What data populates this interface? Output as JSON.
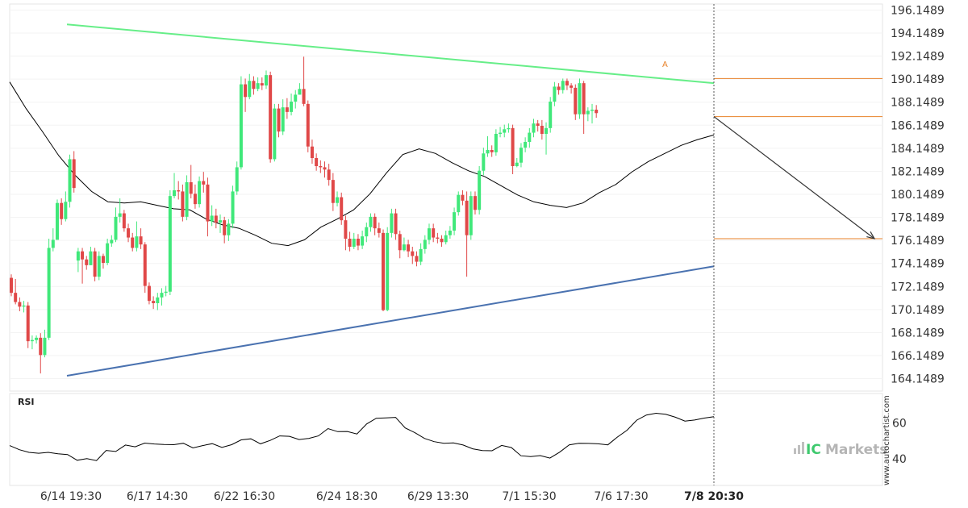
{
  "chart_data": [
    {
      "type": "candlestick",
      "y_ticks": [
        "196.1489",
        "194.1489",
        "192.1489",
        "190.1489",
        "188.1489",
        "186.1489",
        "184.1489",
        "182.1489",
        "180.1489",
        "178.1489",
        "176.1489",
        "174.1489",
        "172.1489",
        "170.1489",
        "168.1489",
        "166.1489",
        "164.1489"
      ],
      "ylim": [
        163.0,
        196.6
      ],
      "x_ticks": [
        "6/14 19:30",
        "6/17 14:30",
        "6/22 16:30",
        "6/24 18:30",
        "6/29 13:30",
        "7/1 15:30",
        "7/6 17:30",
        "7/8 20:30"
      ],
      "x_ticks_emphasis": "7/8 20:30",
      "candles": [
        [
          172.9,
          171.6,
          173.2,
          171.3
        ],
        [
          171.6,
          170.8,
          172.8,
          170.6
        ],
        [
          170.8,
          170.4,
          171.2,
          170.0
        ],
        [
          170.4,
          170.5,
          170.9,
          169.9
        ],
        [
          170.5,
          167.4,
          170.8,
          166.8
        ],
        [
          167.4,
          167.5,
          167.9,
          166.7
        ],
        [
          167.5,
          167.7,
          167.9,
          167.2
        ],
        [
          167.7,
          166.2,
          168.1,
          164.6
        ],
        [
          166.2,
          167.7,
          168.4,
          166.0
        ],
        [
          167.7,
          175.5,
          176.3,
          167.5
        ],
        [
          175.5,
          176.2,
          177.2,
          175.2
        ],
        [
          176.2,
          179.4,
          179.7,
          176.4
        ],
        [
          179.4,
          178.0,
          179.8,
          177.5
        ],
        [
          178.0,
          179.5,
          180.4,
          177.8
        ],
        [
          179.5,
          183.2,
          183.6,
          179.0
        ],
        [
          183.2,
          180.7,
          183.9,
          180.3
        ],
        [
          174.4,
          175.2,
          175.5,
          173.4
        ],
        [
          175.2,
          174.5,
          175.5,
          172.4
        ],
        [
          174.5,
          174.0,
          174.8,
          173.6
        ],
        [
          174.0,
          175.2,
          175.6,
          174.0
        ],
        [
          175.2,
          173.0,
          175.5,
          172.6
        ],
        [
          173.0,
          174.8,
          175.2,
          172.7
        ],
        [
          174.8,
          174.2,
          175.0,
          173.7
        ],
        [
          174.2,
          175.9,
          176.3,
          174.0
        ],
        [
          175.9,
          176.2,
          176.6,
          175.6
        ],
        [
          176.2,
          178.2,
          179.0,
          176.0
        ],
        [
          178.2,
          178.5,
          179.8,
          177.7
        ],
        [
          178.5,
          177.2,
          178.8,
          176.9
        ],
        [
          177.2,
          176.4,
          177.6,
          176.0
        ],
        [
          176.4,
          175.5,
          176.8,
          175.2
        ],
        [
          175.5,
          176.5,
          177.8,
          175.2
        ],
        [
          176.5,
          175.8,
          177.2,
          175.4
        ],
        [
          175.8,
          172.2,
          176.0,
          171.6
        ],
        [
          172.2,
          170.9,
          172.5,
          170.6
        ],
        [
          170.9,
          170.7,
          171.3,
          170.2
        ],
        [
          170.7,
          171.2,
          171.6,
          170.1
        ],
        [
          171.2,
          171.6,
          172.0,
          170.5
        ],
        [
          171.6,
          171.7,
          172.2,
          171.3
        ],
        [
          171.7,
          180.0,
          180.5,
          171.4
        ],
        [
          180.0,
          180.5,
          182.0,
          179.8
        ],
        [
          180.5,
          180.4,
          181.3,
          179.7
        ],
        [
          180.4,
          178.2,
          181.0,
          177.8
        ],
        [
          178.2,
          181.2,
          181.8,
          177.9
        ],
        [
          181.2,
          180.2,
          182.7,
          179.8
        ],
        [
          180.2,
          179.3,
          181.0,
          178.9
        ],
        [
          179.3,
          181.3,
          181.7,
          179.0
        ],
        [
          181.3,
          181.0,
          182.1,
          180.3
        ],
        [
          181.0,
          177.8,
          181.6,
          176.5
        ],
        [
          177.8,
          178.3,
          179.2,
          177.4
        ],
        [
          178.3,
          177.7,
          178.9,
          177.2
        ],
        [
          177.7,
          177.9,
          178.4,
          176.8
        ],
        [
          177.9,
          176.6,
          178.2,
          175.9
        ],
        [
          176.6,
          177.6,
          178.0,
          176.1
        ],
        [
          177.6,
          180.4,
          180.9,
          177.2
        ],
        [
          180.4,
          182.5,
          183.0,
          180.1
        ],
        [
          182.5,
          189.7,
          190.4,
          182.3
        ],
        [
          189.7,
          188.6,
          190.2,
          187.3
        ],
        [
          188.6,
          190.0,
          190.6,
          188.4
        ],
        [
          190.0,
          189.3,
          190.4,
          188.8
        ],
        [
          189.3,
          189.8,
          190.3,
          189.1
        ],
        [
          189.8,
          189.6,
          190.3,
          189.2
        ],
        [
          189.6,
          190.5,
          190.9,
          189.3
        ],
        [
          190.5,
          183.2,
          190.8,
          182.9
        ],
        [
          183.2,
          187.6,
          188.0,
          183.0
        ],
        [
          187.6,
          185.6,
          188.0,
          185.1
        ],
        [
          185.6,
          187.7,
          188.4,
          185.3
        ],
        [
          187.7,
          187.3,
          188.5,
          186.7
        ],
        [
          187.3,
          188.2,
          188.9,
          187.0
        ],
        [
          188.2,
          188.8,
          189.2,
          187.6
        ],
        [
          188.8,
          189.3,
          189.8,
          188.8
        ],
        [
          189.3,
          188.0,
          192.1,
          187.8
        ],
        [
          188.0,
          184.3,
          188.3,
          183.8
        ],
        [
          184.3,
          183.3,
          184.9,
          182.8
        ],
        [
          183.3,
          182.6,
          183.7,
          182.2
        ],
        [
          182.6,
          182.5,
          183.1,
          182.0
        ],
        [
          182.5,
          182.3,
          183.0,
          181.6
        ],
        [
          182.3,
          181.4,
          182.8,
          180.9
        ],
        [
          181.4,
          179.4,
          182.0,
          178.7
        ],
        [
          179.4,
          179.9,
          180.4,
          179.1
        ],
        [
          179.9,
          177.9,
          180.3,
          177.5
        ],
        [
          177.9,
          176.3,
          178.3,
          175.3
        ],
        [
          176.3,
          175.6,
          176.9,
          175.2
        ],
        [
          175.6,
          176.3,
          176.8,
          175.4
        ],
        [
          176.3,
          175.7,
          176.7,
          175.3
        ],
        [
          175.7,
          176.5,
          177.0,
          175.4
        ],
        [
          176.5,
          177.3,
          177.7,
          176.0
        ],
        [
          177.3,
          178.2,
          178.5,
          176.9
        ],
        [
          178.2,
          177.2,
          178.5,
          176.6
        ],
        [
          177.2,
          176.8,
          177.7,
          176.4
        ],
        [
          176.8,
          170.1,
          177.1,
          170.0
        ],
        [
          170.1,
          176.8,
          177.3,
          170.0
        ],
        [
          176.8,
          178.5,
          178.9,
          176.4
        ],
        [
          178.5,
          176.7,
          178.9,
          176.2
        ],
        [
          176.7,
          175.3,
          177.0,
          174.6
        ],
        [
          175.3,
          175.8,
          176.4,
          175.2
        ],
        [
          175.8,
          175.2,
          176.2,
          174.7
        ],
        [
          175.2,
          174.8,
          175.6,
          174.1
        ],
        [
          174.8,
          174.3,
          175.2,
          173.9
        ],
        [
          174.3,
          175.4,
          175.9,
          174.0
        ],
        [
          175.4,
          176.2,
          176.6,
          175.0
        ],
        [
          176.2,
          177.2,
          177.6,
          175.8
        ],
        [
          177.2,
          176.4,
          177.6,
          176.0
        ],
        [
          176.4,
          176.3,
          176.8,
          175.9
        ],
        [
          176.3,
          176.0,
          176.6,
          175.6
        ],
        [
          176.0,
          176.6,
          177.0,
          175.8
        ],
        [
          176.6,
          177.0,
          177.4,
          176.3
        ],
        [
          177.0,
          178.6,
          179.0,
          176.6
        ],
        [
          178.6,
          180.1,
          180.4,
          178.3
        ],
        [
          180.1,
          179.6,
          180.5,
          179.2
        ],
        [
          179.6,
          176.6,
          180.4,
          173.0
        ],
        [
          176.6,
          180.0,
          180.4,
          176.2
        ],
        [
          180.0,
          178.8,
          180.4,
          178.4
        ],
        [
          178.8,
          182.2,
          182.6,
          178.4
        ],
        [
          182.2,
          183.7,
          184.2,
          181.8
        ],
        [
          183.7,
          184.0,
          185.2,
          183.4
        ],
        [
          184.0,
          183.8,
          184.4,
          183.4
        ],
        [
          183.8,
          185.4,
          185.8,
          183.5
        ],
        [
          185.4,
          185.5,
          186.0,
          185.1
        ],
        [
          185.5,
          185.8,
          186.2,
          185.1
        ],
        [
          185.8,
          185.9,
          186.3,
          185.5
        ],
        [
          185.9,
          182.6,
          186.2,
          181.9
        ],
        [
          182.6,
          182.9,
          183.3,
          182.5
        ],
        [
          182.9,
          184.2,
          184.6,
          182.5
        ],
        [
          184.2,
          184.7,
          185.1,
          183.8
        ],
        [
          184.7,
          185.5,
          185.9,
          184.2
        ],
        [
          185.5,
          186.3,
          186.7,
          185.1
        ],
        [
          186.3,
          186.1,
          186.6,
          185.6
        ],
        [
          186.1,
          185.4,
          186.6,
          184.9
        ],
        [
          185.4,
          185.9,
          186.4,
          183.6
        ],
        [
          185.9,
          188.2,
          188.6,
          185.5
        ],
        [
          188.2,
          189.5,
          189.9,
          187.8
        ],
        [
          189.5,
          189.2,
          189.8,
          188.8
        ],
        [
          189.2,
          190.0,
          190.2,
          188.9
        ],
        [
          190.0,
          189.6,
          190.2,
          189.2
        ],
        [
          189.6,
          189.4,
          189.8,
          188.9
        ],
        [
          189.4,
          187.1,
          189.7,
          186.6
        ],
        [
          187.1,
          189.8,
          190.2,
          186.7
        ],
        [
          189.8,
          187.1,
          190.0,
          185.4
        ],
        [
          187.1,
          187.4,
          187.7,
          186.5
        ],
        [
          187.4,
          187.5,
          188.0,
          186.3
        ],
        [
          187.5,
          187.2,
          187.9,
          186.8
        ]
      ],
      "moving_average": [
        189.9,
        187.6,
        185.6,
        183.5,
        181.8,
        180.4,
        179.5,
        179.4,
        179.5,
        179.2,
        178.9,
        178.8,
        178.0,
        177.5,
        177.2,
        176.6,
        175.9,
        175.7,
        176.2,
        177.3,
        178.0,
        178.8,
        180.2,
        182.0,
        183.6,
        184.1,
        183.7,
        182.9,
        182.2,
        181.7,
        180.9,
        180.1,
        179.5,
        179.2,
        179.0,
        179.4,
        180.3,
        181.0,
        182.1,
        183.0,
        183.7,
        184.4,
        184.9,
        185.3
      ],
      "trendlines": {
        "resistance": {
          "color": "#66ee88",
          "from": 194.9,
          "to": 189.8
        },
        "support": {
          "color": "#4a72b0",
          "from": 164.4,
          "to": 173.9
        }
      },
      "levels": [
        190.2,
        186.9,
        176.3
      ],
      "level_color": "#e8822a",
      "annotation_label": "A",
      "forecast_arrow": {
        "from": 186.9,
        "to": 176.3
      },
      "colors": {
        "up": "#40e87a",
        "down": "#e04848",
        "ma": "#000000"
      }
    },
    {
      "type": "line",
      "title": "RSI",
      "y_ticks": [
        "60",
        "40"
      ],
      "ylim": [
        25,
        76
      ],
      "values": [
        47.3,
        45.0,
        43.5,
        43.0,
        43.5,
        42.7,
        42.3,
        39.1,
        40.0,
        38.9,
        44.6,
        44.0,
        47.6,
        46.6,
        48.7,
        48.2,
        47.9,
        47.8,
        48.6,
        46.0,
        47.3,
        48.4,
        46.3,
        47.8,
        50.5,
        51.1,
        48.3,
        50.2,
        52.7,
        52.5,
        50.7,
        51.3,
        52.7,
        56.8,
        55.1,
        55.2,
        53.8,
        59.4,
        62.6,
        62.8,
        63.1,
        57.2,
        54.5,
        51.3,
        49.5,
        48.6,
        48.8,
        47.6,
        45.5,
        44.5,
        44.4,
        47.4,
        46.2,
        41.6,
        41.1,
        41.7,
        40.3,
        43.6,
        47.7,
        48.6,
        48.5,
        48.3,
        47.7,
        52.1,
        55.9,
        61.5,
        64.4,
        65.4,
        64.8,
        63.2,
        61.0,
        61.6,
        62.7,
        63.5
      ],
      "line_color": "#000000"
    }
  ],
  "branding": {
    "logo_ic": "IC",
    "logo_markets": "Markets",
    "watermark": "www.autochartist.com"
  }
}
